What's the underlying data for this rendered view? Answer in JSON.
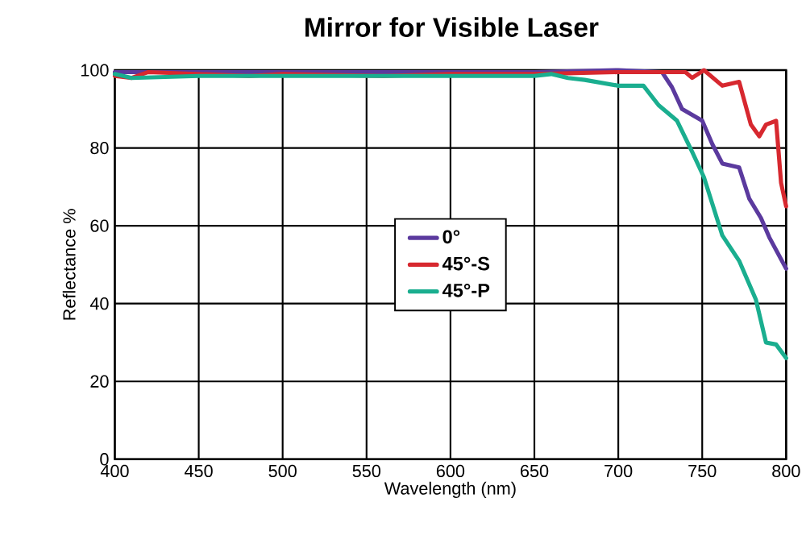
{
  "chart_data": {
    "type": "line",
    "title": "Mirror for Visible Laser",
    "xlabel": "Wavelength (nm)",
    "ylabel": "Reflectance %",
    "xlim": [
      400,
      800
    ],
    "ylim": [
      0,
      100
    ],
    "xticks": [
      400,
      450,
      500,
      550,
      600,
      650,
      700,
      750,
      800
    ],
    "yticks": [
      0,
      20,
      40,
      60,
      80,
      100
    ],
    "grid": true,
    "legend": "center",
    "series": [
      {
        "name": "0°",
        "color": "#5b3a9e",
        "x": [
          400,
          450,
          500,
          550,
          600,
          650,
          700,
          726,
          732,
          738,
          750,
          756,
          762,
          772,
          778,
          785,
          790,
          800
        ],
        "values": [
          99.5,
          99.5,
          99.5,
          99.5,
          99.5,
          99.5,
          100,
          99.5,
          95.6,
          90,
          87,
          81,
          76,
          75,
          67,
          62,
          57,
          49
        ]
      },
      {
        "name": "45°-S",
        "color": "#d7282f",
        "x": [
          400,
          410,
          420,
          480,
          500,
          560,
          600,
          650,
          700,
          740,
          744,
          751,
          762,
          772,
          779,
          784,
          788,
          794,
          797,
          800
        ],
        "values": [
          98.5,
          98,
          99.5,
          98.5,
          99,
          98.5,
          99,
          99,
          99.5,
          99.5,
          98,
          100,
          96,
          97,
          86,
          83,
          86,
          87,
          71,
          65
        ]
      },
      {
        "name": "45°-P",
        "color": "#1aae8f",
        "x": [
          400,
          410,
          450,
          500,
          550,
          600,
          650,
          660,
          670,
          680,
          700,
          715,
          724,
          735,
          744,
          751,
          762,
          772,
          782,
          788,
          794,
          800
        ],
        "values": [
          99,
          98,
          98.5,
          98.5,
          98.5,
          98.5,
          98.5,
          99,
          98,
          97.5,
          96,
          96,
          91,
          87,
          79,
          72.5,
          57.5,
          51,
          41,
          30,
          29.5,
          26
        ]
      }
    ]
  }
}
